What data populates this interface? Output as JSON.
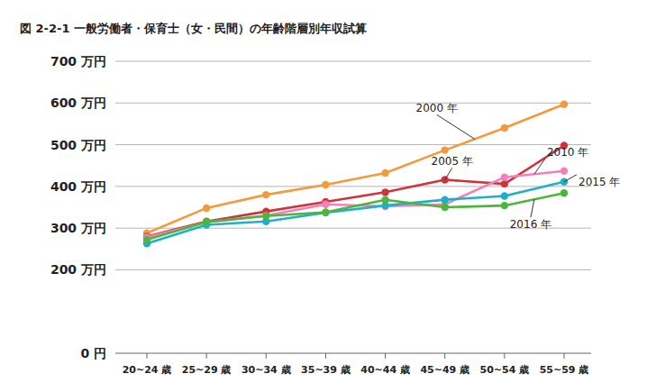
{
  "chart_data": {
    "type": "line",
    "title": "図 2-2-1 一般労働者・保育士（女・民間）の年齢階層別年収試算",
    "categories": [
      "20~24 歳",
      "25~29 歳",
      "30~34 歳",
      "35~39 歳",
      "40~44 歳",
      "45~49 歳",
      "50~54 歳",
      "55~59 歳"
    ],
    "series": [
      {
        "name": "2000 年",
        "color": "#f39a3c",
        "values": [
          288,
          348,
          380,
          404,
          432,
          487,
          540,
          597
        ]
      },
      {
        "name": "2005 年",
        "color": "#d0343a",
        "values": [
          280,
          316,
          340,
          363,
          386,
          416,
          406,
          498
        ]
      },
      {
        "name": "2010 年",
        "color": "#f47fb9",
        "values": [
          278,
          314,
          330,
          357,
          352,
          357,
          422,
          437
        ]
      },
      {
        "name": "2015 年",
        "color": "#1fb0c8",
        "values": [
          263,
          308,
          316,
          337,
          354,
          368,
          377,
          411
        ]
      },
      {
        "name": "2016 年",
        "color": "#4cb63c",
        "values": [
          272,
          315,
          329,
          338,
          368,
          350,
          354,
          384
        ]
      }
    ],
    "ylim": [
      0,
      700
    ],
    "yticks": [
      {
        "value": 0,
        "label": "0 円"
      },
      {
        "value": 200,
        "label": "200 万円"
      },
      {
        "value": 300,
        "label": "300 万円"
      },
      {
        "value": 400,
        "label": "400 万円"
      },
      {
        "value": 500,
        "label": "500 万円"
      },
      {
        "value": 600,
        "label": "600 万円"
      },
      {
        "value": 700,
        "label": "700 万円"
      }
    ],
    "grid": true,
    "marker": "circle"
  }
}
